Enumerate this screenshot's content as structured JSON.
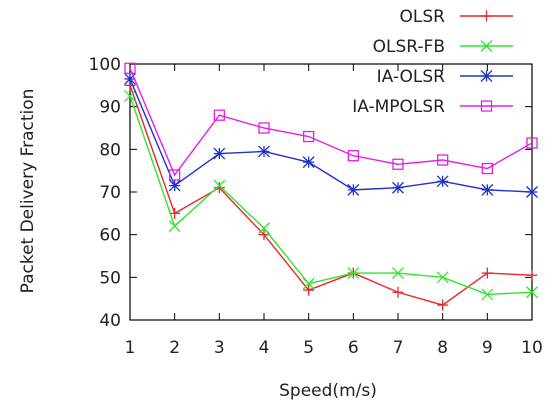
{
  "chart_data": {
    "type": "line",
    "xlabel": "Speed(m/s)",
    "ylabel": "Packet Delivery Fraction",
    "x": [
      1,
      2,
      3,
      4,
      5,
      6,
      7,
      8,
      9,
      10
    ],
    "xlim": [
      1,
      10
    ],
    "ylim": [
      40,
      100
    ],
    "x_ticks": [
      1,
      2,
      3,
      4,
      5,
      6,
      7,
      8,
      9,
      10
    ],
    "y_ticks": [
      40,
      50,
      60,
      70,
      80,
      90,
      100
    ],
    "grid": false,
    "legend_position": "top-right",
    "series": [
      {
        "name": "OLSR",
        "color": "#e8262b",
        "marker": "plus",
        "values": [
          95,
          65,
          71,
          60,
          47,
          51,
          46.5,
          43.5,
          51,
          50.5
        ]
      },
      {
        "name": "OLSR-FB",
        "color": "#2ee62e",
        "marker": "x",
        "values": [
          92.5,
          62,
          71.5,
          61.5,
          48.5,
          51,
          51,
          50,
          46,
          46.5
        ]
      },
      {
        "name": "IA-OLSR",
        "color": "#1f33c8",
        "marker": "asterisk",
        "values": [
          96.5,
          71.5,
          79,
          79.5,
          77,
          70.5,
          71,
          72.5,
          70.5,
          70
        ]
      },
      {
        "name": "IA-MPOLSR",
        "color": "#e61ee6",
        "marker": "square",
        "values": [
          99,
          74,
          88,
          85,
          83,
          78.5,
          76.5,
          77.5,
          75.5,
          81.5
        ]
      }
    ]
  }
}
